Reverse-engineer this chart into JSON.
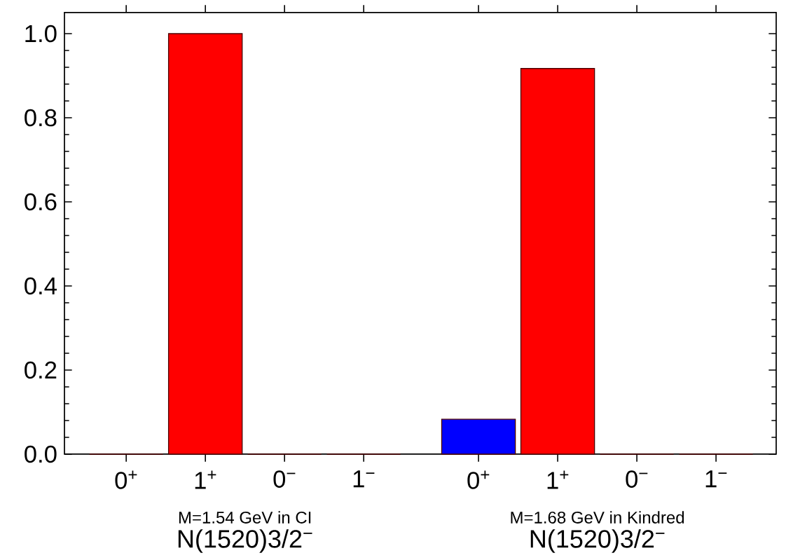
{
  "chart_data": {
    "type": "bar",
    "categories": [
      "0$^{+}$",
      "1$^{+}$",
      "0$^{−}$",
      "1$^{−}$",
      "0$^{+}$",
      "1$^{+}$",
      "0$^{−}$",
      "1$^{−}$"
    ],
    "values": [
      0,
      1.0,
      0,
      0,
      0.083,
      0.917,
      0,
      0
    ],
    "colors": [
      "#ff0000",
      "#ff0000",
      "#ff0000",
      "#ff0000",
      "#0000ff",
      "#ff0000",
      "#ff0000",
      "#ff0000"
    ],
    "ylim": [
      0,
      1.05
    ],
    "yticks": [
      {
        "value": 0,
        "label": "0.0"
      },
      0.2,
      0.4,
      0.6,
      0.8,
      {
        "value": 1,
        "label": "1.0"
      }
    ],
    "annotations": [
      "M=1.54 GeV in CI",
      "N(1520)3/2$^{−}$",
      "M=1.68 GeV in Kindred",
      "N(1520)3/2$^{−}$"
    ],
    "grid": false
  }
}
